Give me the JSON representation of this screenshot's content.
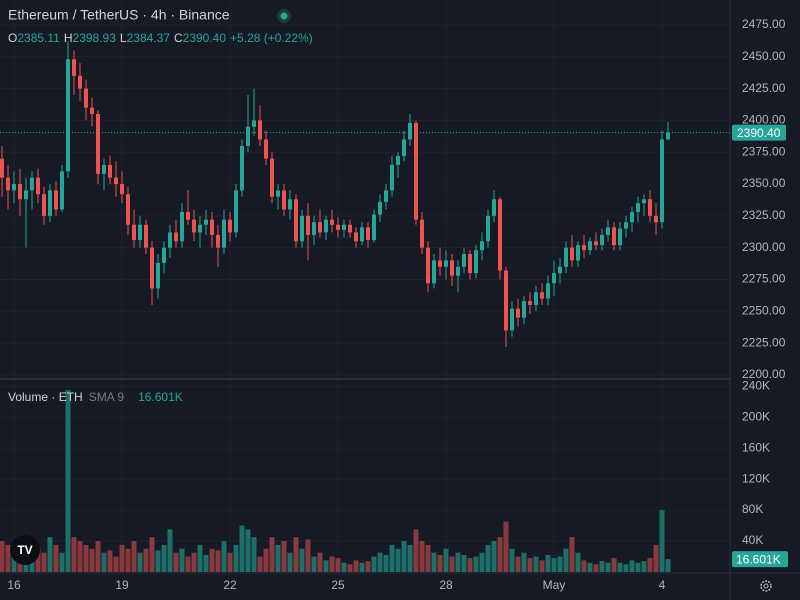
{
  "chart_data": {
    "type": "candlestick",
    "title": "Ethereum / TetherUS · 4h · Binance",
    "legend": {
      "items": [
        {
          "key": "O",
          "value": "2385.11"
        },
        {
          "key": "H",
          "value": "2398.93"
        },
        {
          "key": "L",
          "value": "2384.37"
        },
        {
          "key": "C",
          "value": "2390.40"
        }
      ],
      "change": "+5.28 (+0.22%)"
    },
    "categories": [
      null,
      null,
      "16",
      null,
      null,
      null,
      null,
      null,
      null,
      null,
      null,
      null,
      null,
      null,
      null,
      null,
      null,
      null,
      null,
      null,
      "19",
      null,
      null,
      null,
      null,
      null,
      null,
      null,
      null,
      null,
      null,
      null,
      null,
      null,
      null,
      null,
      null,
      null,
      "22",
      null,
      null,
      null,
      null,
      null,
      null,
      null,
      null,
      null,
      null,
      null,
      null,
      null,
      null,
      null,
      null,
      null,
      "25",
      null,
      null,
      null,
      null,
      null,
      null,
      null,
      null,
      null,
      null,
      null,
      null,
      null,
      null,
      null,
      null,
      null,
      "28",
      null,
      null,
      null,
      null,
      null,
      null,
      null,
      null,
      null,
      null,
      null,
      null,
      null,
      null,
      null,
      null,
      null,
      "May",
      null,
      null,
      null,
      null,
      null,
      null,
      null,
      null,
      null,
      null,
      null,
      null,
      null,
      null,
      null,
      null,
      null,
      "4",
      null
    ],
    "candles": [
      [
        2370,
        2380,
        2340,
        2355
      ],
      [
        2355,
        2365,
        2330,
        2345
      ],
      [
        2345,
        2360,
        2335,
        2350
      ],
      [
        2350,
        2362,
        2325,
        2338
      ],
      [
        2338,
        2355,
        2300,
        2345
      ],
      [
        2345,
        2360,
        2330,
        2355
      ],
      [
        2355,
        2362,
        2335,
        2342
      ],
      [
        2342,
        2348,
        2318,
        2325
      ],
      [
        2325,
        2350,
        2320,
        2345
      ],
      [
        2345,
        2352,
        2325,
        2330
      ],
      [
        2330,
        2365,
        2328,
        2360
      ],
      [
        2360,
        2462,
        2355,
        2448
      ],
      [
        2448,
        2455,
        2420,
        2435
      ],
      [
        2435,
        2445,
        2415,
        2425
      ],
      [
        2425,
        2432,
        2400,
        2410
      ],
      [
        2410,
        2418,
        2395,
        2405
      ],
      [
        2405,
        2408,
        2350,
        2358
      ],
      [
        2358,
        2370,
        2345,
        2365
      ],
      [
        2365,
        2372,
        2350,
        2355
      ],
      [
        2355,
        2368,
        2340,
        2350
      ],
      [
        2350,
        2360,
        2335,
        2342
      ],
      [
        2342,
        2348,
        2310,
        2318
      ],
      [
        2318,
        2330,
        2300,
        2306
      ],
      [
        2306,
        2325,
        2300,
        2318
      ],
      [
        2318,
        2322,
        2295,
        2300
      ],
      [
        2300,
        2305,
        2255,
        2268
      ],
      [
        2268,
        2295,
        2260,
        2288
      ],
      [
        2288,
        2305,
        2280,
        2300
      ],
      [
        2300,
        2318,
        2292,
        2312
      ],
      [
        2312,
        2322,
        2300,
        2305
      ],
      [
        2305,
        2335,
        2300,
        2328
      ],
      [
        2328,
        2345,
        2318,
        2322
      ],
      [
        2322,
        2330,
        2305,
        2312
      ],
      [
        2312,
        2325,
        2300,
        2318
      ],
      [
        2318,
        2330,
        2310,
        2322
      ],
      [
        2322,
        2328,
        2300,
        2310
      ],
      [
        2310,
        2318,
        2285,
        2300
      ],
      [
        2300,
        2330,
        2295,
        2322
      ],
      [
        2322,
        2328,
        2305,
        2312
      ],
      [
        2312,
        2350,
        2308,
        2345
      ],
      [
        2345,
        2385,
        2340,
        2380
      ],
      [
        2380,
        2420,
        2375,
        2395
      ],
      [
        2395,
        2425,
        2388,
        2400
      ],
      [
        2400,
        2412,
        2380,
        2385
      ],
      [
        2385,
        2392,
        2365,
        2370
      ],
      [
        2370,
        2375,
        2335,
        2340
      ],
      [
        2340,
        2350,
        2330,
        2345
      ],
      [
        2345,
        2350,
        2325,
        2330
      ],
      [
        2330,
        2345,
        2322,
        2338
      ],
      [
        2338,
        2342,
        2300,
        2305
      ],
      [
        2305,
        2330,
        2300,
        2325
      ],
      [
        2325,
        2335,
        2290,
        2310
      ],
      [
        2310,
        2325,
        2302,
        2320
      ],
      [
        2320,
        2330,
        2308,
        2312
      ],
      [
        2312,
        2325,
        2306,
        2322
      ],
      [
        2322,
        2330,
        2312,
        2318
      ],
      [
        2318,
        2324,
        2308,
        2314
      ],
      [
        2314,
        2322,
        2308,
        2318
      ],
      [
        2318,
        2322,
        2308,
        2312
      ],
      [
        2312,
        2316,
        2300,
        2305
      ],
      [
        2305,
        2320,
        2302,
        2316
      ],
      [
        2316,
        2320,
        2300,
        2306
      ],
      [
        2306,
        2330,
        2304,
        2326
      ],
      [
        2326,
        2342,
        2320,
        2336
      ],
      [
        2336,
        2350,
        2330,
        2345
      ],
      [
        2345,
        2372,
        2340,
        2365
      ],
      [
        2365,
        2375,
        2355,
        2372
      ],
      [
        2372,
        2392,
        2368,
        2385
      ],
      [
        2385,
        2405,
        2380,
        2398
      ],
      [
        2398,
        2400,
        2318,
        2322
      ],
      [
        2322,
        2328,
        2295,
        2300
      ],
      [
        2300,
        2305,
        2265,
        2272
      ],
      [
        2272,
        2295,
        2268,
        2290
      ],
      [
        2290,
        2300,
        2278,
        2285
      ],
      [
        2285,
        2298,
        2275,
        2290
      ],
      [
        2290,
        2295,
        2270,
        2278
      ],
      [
        2278,
        2290,
        2265,
        2285
      ],
      [
        2285,
        2300,
        2280,
        2295
      ],
      [
        2295,
        2298,
        2275,
        2280
      ],
      [
        2280,
        2302,
        2276,
        2298
      ],
      [
        2298,
        2312,
        2290,
        2305
      ],
      [
        2305,
        2330,
        2300,
        2325
      ],
      [
        2325,
        2345,
        2320,
        2338
      ],
      [
        2338,
        2340,
        2275,
        2282
      ],
      [
        2282,
        2285,
        2222,
        2235
      ],
      [
        2235,
        2258,
        2230,
        2252
      ],
      [
        2252,
        2260,
        2238,
        2245
      ],
      [
        2245,
        2262,
        2240,
        2258
      ],
      [
        2258,
        2265,
        2248,
        2255
      ],
      [
        2255,
        2270,
        2250,
        2265
      ],
      [
        2265,
        2272,
        2255,
        2260
      ],
      [
        2260,
        2278,
        2255,
        2272
      ],
      [
        2272,
        2290,
        2262,
        2280
      ],
      [
        2280,
        2292,
        2272,
        2285
      ],
      [
        2285,
        2305,
        2280,
        2300
      ],
      [
        2300,
        2310,
        2285,
        2290
      ],
      [
        2290,
        2305,
        2285,
        2302
      ],
      [
        2302,
        2310,
        2292,
        2298
      ],
      [
        2298,
        2308,
        2294,
        2305
      ],
      [
        2305,
        2312,
        2298,
        2302
      ],
      [
        2302,
        2315,
        2298,
        2310
      ],
      [
        2310,
        2322,
        2305,
        2316
      ],
      [
        2316,
        2320,
        2298,
        2302
      ],
      [
        2302,
        2320,
        2298,
        2315
      ],
      [
        2315,
        2325,
        2308,
        2320
      ],
      [
        2320,
        2332,
        2312,
        2328
      ],
      [
        2328,
        2340,
        2320,
        2335
      ],
      [
        2335,
        2342,
        2325,
        2338
      ],
      [
        2338,
        2345,
        2320,
        2325
      ],
      [
        2325,
        2335,
        2310,
        2320
      ],
      [
        2320,
        2392,
        2315,
        2385.11
      ],
      [
        2385.11,
        2398.93,
        2384.37,
        2390.4
      ]
    ],
    "volume": [
      40000,
      35000,
      25000,
      20000,
      22000,
      18000,
      30000,
      25000,
      45000,
      35000,
      25000,
      235000,
      45000,
      40000,
      35000,
      30000,
      40000,
      25000,
      28000,
      20000,
      35000,
      30000,
      40000,
      25000,
      30000,
      45000,
      28000,
      35000,
      55000,
      25000,
      30000,
      20000,
      25000,
      35000,
      22000,
      30000,
      28000,
      40000,
      25000,
      35000,
      60000,
      55000,
      45000,
      20000,
      30000,
      45000,
      35000,
      40000,
      25000,
      45000,
      30000,
      42000,
      20000,
      25000,
      15000,
      20000,
      18000,
      12000,
      10000,
      15000,
      12000,
      14000,
      20000,
      25000,
      22000,
      35000,
      30000,
      40000,
      35000,
      55000,
      40000,
      35000,
      25000,
      22000,
      30000,
      20000,
      25000,
      22000,
      18000,
      20000,
      25000,
      35000,
      40000,
      45000,
      65000,
      30000,
      20000,
      25000,
      18000,
      20000,
      15000,
      22000,
      18000,
      20000,
      30000,
      45000,
      25000,
      15000,
      12000,
      10000,
      14000,
      12000,
      18000,
      12000,
      10000,
      15000,
      12000,
      14000,
      18000,
      35000,
      80000,
      16601
    ],
    "ylim": [
      2197.6,
      2494.6
    ],
    "yticks": [
      {
        "value": 2200,
        "label": "2200.00"
      },
      {
        "value": 2225,
        "label": "2225.00"
      },
      {
        "value": 2250,
        "label": "2250.00"
      },
      {
        "value": 2275,
        "label": "2275.00"
      },
      {
        "value": 2300,
        "label": "2300.00"
      },
      {
        "value": 2325,
        "label": "2325.00"
      },
      {
        "value": 2350,
        "label": "2350.00"
      },
      {
        "value": 2375,
        "label": "2375.00"
      },
      {
        "value": 2400,
        "label": "2400.00"
      },
      {
        "value": 2425,
        "label": "2425.00"
      },
      {
        "value": 2450,
        "label": "2450.00"
      },
      {
        "value": 2475,
        "label": "2475.00"
      }
    ],
    "volume_ylim": [
      0,
      248000
    ],
    "volume_yticks": [
      {
        "value": 40000,
        "label": "40K"
      },
      {
        "value": 80000,
        "label": "80K"
      },
      {
        "value": 120000,
        "label": "120K"
      },
      {
        "value": 160000,
        "label": "160K"
      },
      {
        "value": 200000,
        "label": "200K"
      },
      {
        "value": 240000,
        "label": "240K"
      }
    ],
    "volume_title": "Volume · ETH",
    "volume_sma": "SMA 9",
    "volume_last_label": "16.601K",
    "up_color": "#26a69a",
    "down_color": "#ef5350",
    "volume_up_color": "#1f6f69",
    "volume_down_color": "#8a3a3e",
    "grid": true,
    "last_price_line": true
  }
}
